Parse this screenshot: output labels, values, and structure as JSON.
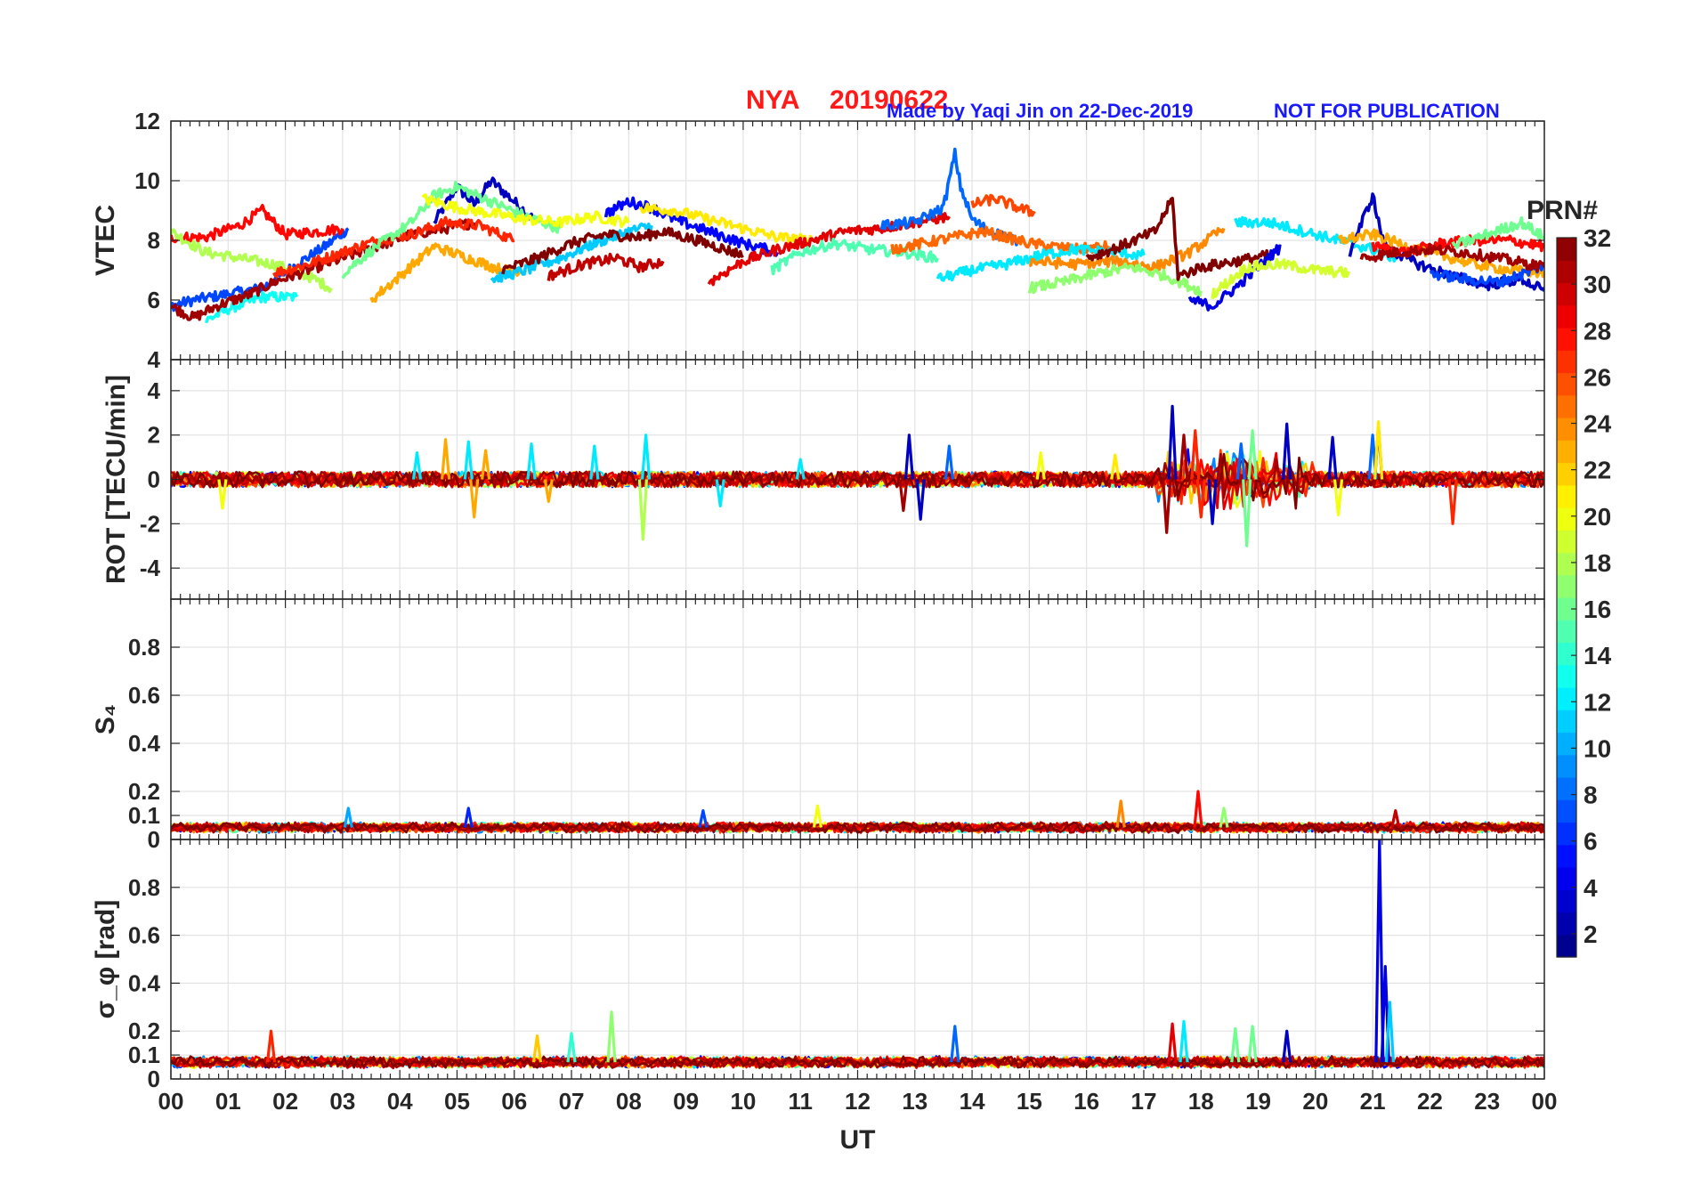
{
  "header": {
    "station": "NYA",
    "date": "20190622",
    "credit": "Made by Yaqi Jin on 22-Dec-2019",
    "notice": "NOT FOR PUBLICATION"
  },
  "colorbar": {
    "title": "PRN#",
    "range": [
      1,
      32
    ],
    "ticks": [
      "2",
      "4",
      "6",
      "8",
      "10",
      "12",
      "14",
      "16",
      "18",
      "20",
      "22",
      "24",
      "26",
      "28",
      "30",
      "32"
    ],
    "colormap": "jet"
  },
  "chart_data": [
    {
      "type": "line",
      "ylabel": "VTEC",
      "ylim": [
        4,
        12
      ],
      "yticks": [
        "4",
        "6",
        "8",
        "10",
        "12"
      ],
      "grid": true,
      "series": [
        {
          "prn": 3,
          "x": [
            4.6,
            5.0,
            5.3,
            5.6,
            6.0,
            6.4
          ],
          "y": [
            8.6,
            9.8,
            9.2,
            10.0,
            9.3,
            8.6
          ]
        },
        {
          "prn": 7,
          "x": [
            0.0,
            0.4,
            1.0,
            1.6,
            2.2,
            2.7,
            3.1
          ],
          "y": [
            5.8,
            6.0,
            6.2,
            6.4,
            7.2,
            7.8,
            8.4
          ]
        },
        {
          "prn": 13,
          "x": [
            0.6,
            1.0,
            1.6,
            2.2
          ],
          "y": [
            5.3,
            5.7,
            6.1,
            6.1
          ]
        },
        {
          "prn": 28,
          "x": [
            0.0,
            0.6,
            1.2,
            1.6,
            2.0,
            2.6,
            3.0
          ],
          "y": [
            8.1,
            8.1,
            8.5,
            9.0,
            8.2,
            8.3,
            8.4
          ]
        },
        {
          "prn": 18,
          "x": [
            0.0,
            0.6,
            1.2,
            1.8,
            2.4,
            2.8
          ],
          "y": [
            8.3,
            7.6,
            7.4,
            7.2,
            6.8,
            6.4
          ]
        },
        {
          "prn": 31,
          "x": [
            0.0,
            0.4,
            0.8,
            1.4,
            1.8,
            2.4,
            3.0,
            3.6,
            4.2,
            4.8,
            5.3
          ],
          "y": [
            5.8,
            5.4,
            5.8,
            6.2,
            6.6,
            7.0,
            7.4,
            7.8,
            8.2,
            8.4,
            8.6
          ]
        },
        {
          "prn": 27,
          "x": [
            1.8,
            2.4,
            3.0,
            3.6,
            4.2,
            4.8,
            5.4,
            6.0
          ],
          "y": [
            6.9,
            7.2,
            7.6,
            8.0,
            8.2,
            8.6,
            8.5,
            8.0
          ]
        },
        {
          "prn": 16,
          "x": [
            3.0,
            3.6,
            4.2,
            4.6,
            5.0,
            5.6,
            6.2,
            6.8
          ],
          "y": [
            6.9,
            7.8,
            8.6,
            9.5,
            9.8,
            9.3,
            8.8,
            8.4
          ]
        },
        {
          "prn": 20,
          "x": [
            4.4,
            5.0,
            5.6,
            6.2,
            6.8,
            7.4,
            8.0
          ],
          "y": [
            9.4,
            9.1,
            8.9,
            8.7,
            8.6,
            8.8,
            8.6
          ]
        },
        {
          "prn": 23,
          "x": [
            3.5,
            4.0,
            4.6,
            5.2,
            5.8,
            6.2
          ],
          "y": [
            6.0,
            6.8,
            7.8,
            7.4,
            7.0,
            7.0
          ]
        },
        {
          "prn": 11,
          "x": [
            5.6,
            6.2,
            6.8,
            7.4,
            8.0,
            8.4
          ],
          "y": [
            6.7,
            7.0,
            7.4,
            7.9,
            8.3,
            8.5
          ]
        },
        {
          "prn": 32,
          "x": [
            5.8,
            6.4,
            7.0,
            7.6,
            8.2,
            8.6,
            9.2,
            10.0
          ],
          "y": [
            7.0,
            7.4,
            7.9,
            8.2,
            8.1,
            8.3,
            8.0,
            7.5
          ]
        },
        {
          "prn": 30,
          "x": [
            6.6,
            7.2,
            7.8,
            8.2,
            8.6
          ],
          "y": [
            6.8,
            7.2,
            7.4,
            7.1,
            7.3
          ]
        },
        {
          "prn": 5,
          "x": [
            7.6,
            8.0,
            8.4,
            8.8,
            9.4,
            10.0,
            10.6
          ],
          "y": [
            8.9,
            9.3,
            9.1,
            8.7,
            8.3,
            7.9,
            7.6
          ]
        },
        {
          "prn": 21,
          "x": [
            8.2,
            8.8,
            9.4,
            10.0,
            10.6,
            11.2
          ],
          "y": [
            9.1,
            9.0,
            8.7,
            8.4,
            8.1,
            8.0
          ]
        },
        {
          "prn": 29,
          "x": [
            9.4,
            10.0,
            10.6,
            11.2,
            11.8,
            12.4,
            13.0,
            13.6
          ],
          "y": [
            6.6,
            7.3,
            7.7,
            8.0,
            8.3,
            8.4,
            8.6,
            8.8
          ]
        },
        {
          "prn": 15,
          "x": [
            10.5,
            11.0,
            11.6,
            12.2,
            12.8,
            13.4
          ],
          "y": [
            7.0,
            7.6,
            7.9,
            7.7,
            7.6,
            7.4
          ]
        },
        {
          "prn": 8,
          "x": [
            12.4,
            13.0,
            13.5,
            13.7,
            13.8,
            14.0,
            14.3,
            14.8
          ],
          "y": [
            8.5,
            8.6,
            9.1,
            10.9,
            9.8,
            8.7,
            8.3,
            8.0
          ]
        },
        {
          "prn": 25,
          "x": [
            12.6,
            13.4,
            14.2,
            15.0,
            15.8,
            16.4
          ],
          "y": [
            7.7,
            8.0,
            8.3,
            7.9,
            7.7,
            7.8
          ]
        },
        {
          "prn": 12,
          "x": [
            13.4,
            14.0,
            14.6,
            15.2,
            15.8,
            16.4,
            17.0
          ],
          "y": [
            6.7,
            7.0,
            7.2,
            7.5,
            7.7,
            7.6,
            7.5
          ]
        },
        {
          "prn": 26,
          "x": [
            14.0,
            14.4,
            14.8,
            15.1
          ],
          "y": [
            9.2,
            9.4,
            9.1,
            8.9
          ]
        },
        {
          "prn": 24,
          "x": [
            15.0,
            15.8,
            16.6,
            17.2,
            17.8,
            18.4
          ],
          "y": [
            7.3,
            7.2,
            7.3,
            7.1,
            7.6,
            8.4
          ]
        },
        {
          "prn": 17,
          "x": [
            15.0,
            15.6,
            16.2,
            16.8,
            17.4,
            18.0
          ],
          "y": [
            6.4,
            6.6,
            6.9,
            7.1,
            6.8,
            6.3
          ]
        },
        {
          "prn": 32,
          "x": [
            16.0,
            16.6,
            17.2,
            17.5,
            17.6,
            18.0,
            18.6,
            19.2
          ],
          "y": [
            7.4,
            7.8,
            8.3,
            9.4,
            6.8,
            7.1,
            7.3,
            7.5
          ]
        },
        {
          "prn": 4,
          "x": [
            17.8,
            18.2,
            18.6,
            19.0,
            19.4
          ],
          "y": [
            6.0,
            5.8,
            6.4,
            7.1,
            7.8
          ]
        },
        {
          "prn": 19,
          "x": [
            18.2,
            18.8,
            19.4,
            20.0,
            20.6
          ],
          "y": [
            6.2,
            7.1,
            7.2,
            7.0,
            6.9
          ]
        },
        {
          "prn": 12,
          "x": [
            18.6,
            19.2,
            19.8,
            20.4,
            21.0,
            21.4
          ],
          "y": [
            8.6,
            8.6,
            8.3,
            8.0,
            7.7,
            7.4
          ]
        },
        {
          "prn": 3,
          "x": [
            20.6,
            21.0,
            21.2,
            21.8,
            22.4,
            23.0,
            23.6,
            24.0
          ],
          "y": [
            7.6,
            9.5,
            7.8,
            7.2,
            6.8,
            6.5,
            6.7,
            6.3
          ]
        },
        {
          "prn": 23,
          "x": [
            20.4,
            21.0,
            21.6,
            22.2,
            22.8,
            23.4,
            24.0
          ],
          "y": [
            8.0,
            8.2,
            7.8,
            7.5,
            7.2,
            7.0,
            6.9
          ]
        },
        {
          "prn": 28,
          "x": [
            21.0,
            21.6,
            22.2,
            22.8,
            23.4,
            24.0
          ],
          "y": [
            7.8,
            7.6,
            7.9,
            8.0,
            8.0,
            7.8
          ]
        },
        {
          "prn": 16,
          "x": [
            22.4,
            23.0,
            23.6,
            24.0
          ],
          "y": [
            7.8,
            8.2,
            8.6,
            8.1
          ]
        },
        {
          "prn": 7,
          "x": [
            22.0,
            22.6,
            23.2,
            23.8,
            24.0
          ],
          "y": [
            6.9,
            6.7,
            6.6,
            7.0,
            7.2
          ]
        },
        {
          "prn": 31,
          "x": [
            20.8,
            21.4,
            22.0,
            22.6,
            23.2,
            24.0
          ],
          "y": [
            7.4,
            7.6,
            7.7,
            7.6,
            7.4,
            7.1
          ]
        }
      ]
    },
    {
      "type": "line",
      "ylabel": "ROT [TECU/min]",
      "ylim": [
        -5.4,
        5.4
      ],
      "yticks": [
        "-4",
        "-2",
        "0",
        "2",
        "4"
      ],
      "grid": true,
      "spikes": [
        {
          "prn": 12,
          "x": [
            4.3,
            5.2,
            6.3,
            7.4,
            8.3,
            9.6,
            11.0
          ],
          "y": [
            1.2,
            1.7,
            1.6,
            1.5,
            2.0,
            -1.2,
            0.9
          ]
        },
        {
          "prn": 18,
          "x": [
            8.25
          ],
          "y": [
            -2.7
          ]
        },
        {
          "prn": 23,
          "x": [
            4.8,
            5.3,
            5.5,
            6.6
          ],
          "y": [
            1.8,
            -1.7,
            1.3,
            -1.0
          ]
        },
        {
          "prn": 3,
          "x": [
            12.9,
            13.1,
            17.5,
            18.2,
            19.5,
            20.3,
            21.1
          ],
          "y": [
            2.0,
            -1.8,
            3.3,
            -2.0,
            2.5,
            1.9,
            2.4
          ]
        },
        {
          "prn": 31,
          "x": [
            12.8,
            17.4,
            17.7
          ],
          "y": [
            -1.4,
            -2.4,
            2.0
          ]
        },
        {
          "prn": 8,
          "x": [
            13.6,
            18.7,
            21.0
          ],
          "y": [
            1.5,
            1.6,
            2.0
          ]
        },
        {
          "prn": 21,
          "x": [
            16.5,
            21.1
          ],
          "y": [
            1.1,
            2.6
          ]
        },
        {
          "prn": 16,
          "x": [
            18.8,
            18.9
          ],
          "y": [
            -3.0,
            2.2
          ]
        },
        {
          "prn": 27,
          "x": [
            17.9,
            18.0,
            22.4
          ],
          "y": [
            2.2,
            -1.7,
            -2.0
          ]
        },
        {
          "prn": 20,
          "x": [
            0.9,
            15.2,
            20.4
          ],
          "y": [
            -1.3,
            1.2,
            -1.6
          ]
        }
      ]
    },
    {
      "type": "line",
      "ylabel": "S₄",
      "ylim": [
        0,
        1
      ],
      "yticks": [
        "0",
        "0.1",
        "0.2",
        "0.4",
        "0.6",
        "0.8"
      ],
      "grid": true,
      "baseline": 0.05,
      "spikes": [
        {
          "prn": 10,
          "x": [
            3.1
          ],
          "y": [
            0.13
          ]
        },
        {
          "prn": 6,
          "x": [
            5.2
          ],
          "y": [
            0.13
          ]
        },
        {
          "prn": 7,
          "x": [
            9.3
          ],
          "y": [
            0.12
          ]
        },
        {
          "prn": 20,
          "x": [
            11.3
          ],
          "y": [
            0.14
          ]
        },
        {
          "prn": 24,
          "x": [
            16.6
          ],
          "y": [
            0.16
          ]
        },
        {
          "prn": 28,
          "x": [
            17.95
          ],
          "y": [
            0.2
          ]
        },
        {
          "prn": 17,
          "x": [
            18.4
          ],
          "y": [
            0.13
          ]
        },
        {
          "prn": 30,
          "x": [
            21.4
          ],
          "y": [
            0.12
          ]
        }
      ]
    },
    {
      "type": "line",
      "ylabel": "σ_φ [rad]",
      "ylim": [
        0,
        1
      ],
      "yticks": [
        "0",
        "0.1",
        "0.2",
        "0.4",
        "0.6",
        "0.8"
      ],
      "xlabel": "UT",
      "xlim": [
        0,
        24
      ],
      "xticks": [
        "00",
        "01",
        "02",
        "03",
        "04",
        "05",
        "06",
        "07",
        "08",
        "09",
        "10",
        "11",
        "12",
        "13",
        "14",
        "15",
        "16",
        "17",
        "18",
        "19",
        "20",
        "21",
        "22",
        "23",
        "00"
      ],
      "grid": true,
      "baseline": 0.07,
      "spikes": [
        {
          "prn": 27,
          "x": [
            1.75
          ],
          "y": [
            0.2
          ]
        },
        {
          "prn": 17,
          "x": [
            7.7
          ],
          "y": [
            0.28
          ]
        },
        {
          "prn": 14,
          "x": [
            7.0
          ],
          "y": [
            0.19
          ]
        },
        {
          "prn": 22,
          "x": [
            6.4
          ],
          "y": [
            0.18
          ]
        },
        {
          "prn": 8,
          "x": [
            13.7
          ],
          "y": [
            0.22
          ]
        },
        {
          "prn": 29,
          "x": [
            17.5
          ],
          "y": [
            0.23
          ]
        },
        {
          "prn": 12,
          "x": [
            17.7
          ],
          "y": [
            0.24
          ]
        },
        {
          "prn": 16,
          "x": [
            18.6,
            18.9
          ],
          "y": [
            0.21,
            0.22
          ]
        },
        {
          "prn": 3,
          "x": [
            19.5
          ],
          "y": [
            0.2
          ]
        },
        {
          "prn": 4,
          "x": [
            21.12,
            21.22
          ],
          "y": [
            1.0,
            0.47
          ]
        },
        {
          "prn": 11,
          "x": [
            21.3
          ],
          "y": [
            0.32
          ]
        }
      ]
    }
  ]
}
